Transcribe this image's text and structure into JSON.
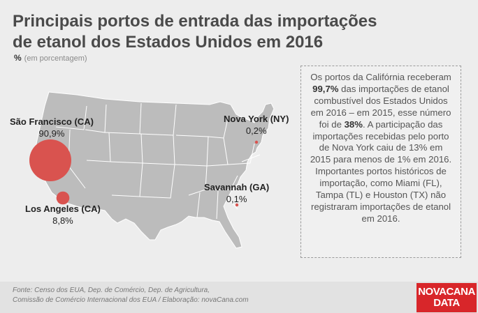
{
  "title": {
    "line1": "Principais portos de entrada das importações",
    "line2": "de etanol dos Estados Unidos em 2016"
  },
  "unit": {
    "symbol": "%",
    "text": "(em porcentagem)"
  },
  "ports": [
    {
      "name": "São Francisco (CA)",
      "value": "90,9%",
      "share": 90.9
    },
    {
      "name": "Los Angeles (CA)",
      "value": "8,8%",
      "share": 8.8
    },
    {
      "name": "Nova York (NY)",
      "value": "0,2%",
      "share": 0.2
    },
    {
      "name": "Savannah (GA)",
      "value": "0,1%",
      "share": 0.1
    }
  ],
  "map": {
    "land_color": "#bcbcbc",
    "border_color": "#ffffff",
    "marker_color": "#d9534f"
  },
  "textbox": {
    "p1": "Os portos da Califórnia receberam ",
    "b1": "99,7%",
    "p2": " das importações de etanol combustível dos Estados Unidos em 2016 – em 2015, esse número foi de ",
    "b2": "38%",
    "p3": ". A participação das importações recebidas pelo porto de Nova York caiu de 13% em 2015 para menos de 1% em 2016. Importantes portos históricos de importação, como Miami (FL), Tampa (TL) e Houston (TX) não registraram importações de etanol em 2016."
  },
  "source": {
    "line1": "Fonte: Censo dos EUA, Dep. de Comércio, Dep. de Agricultura,",
    "line2": "Comissão de Comércio Internacional dos EUA / Elaboração: novaCana.com"
  },
  "logo": {
    "line1": "NOVACANA",
    "line2": "DATA",
    "color": "#d8262a"
  }
}
